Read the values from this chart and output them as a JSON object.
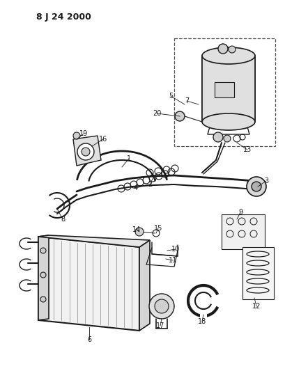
{
  "title": "8 J 24 2000",
  "bg_color": "#ffffff",
  "lc": "#1a1a1a",
  "figsize": [
    4.1,
    5.33
  ],
  "dpi": 100
}
